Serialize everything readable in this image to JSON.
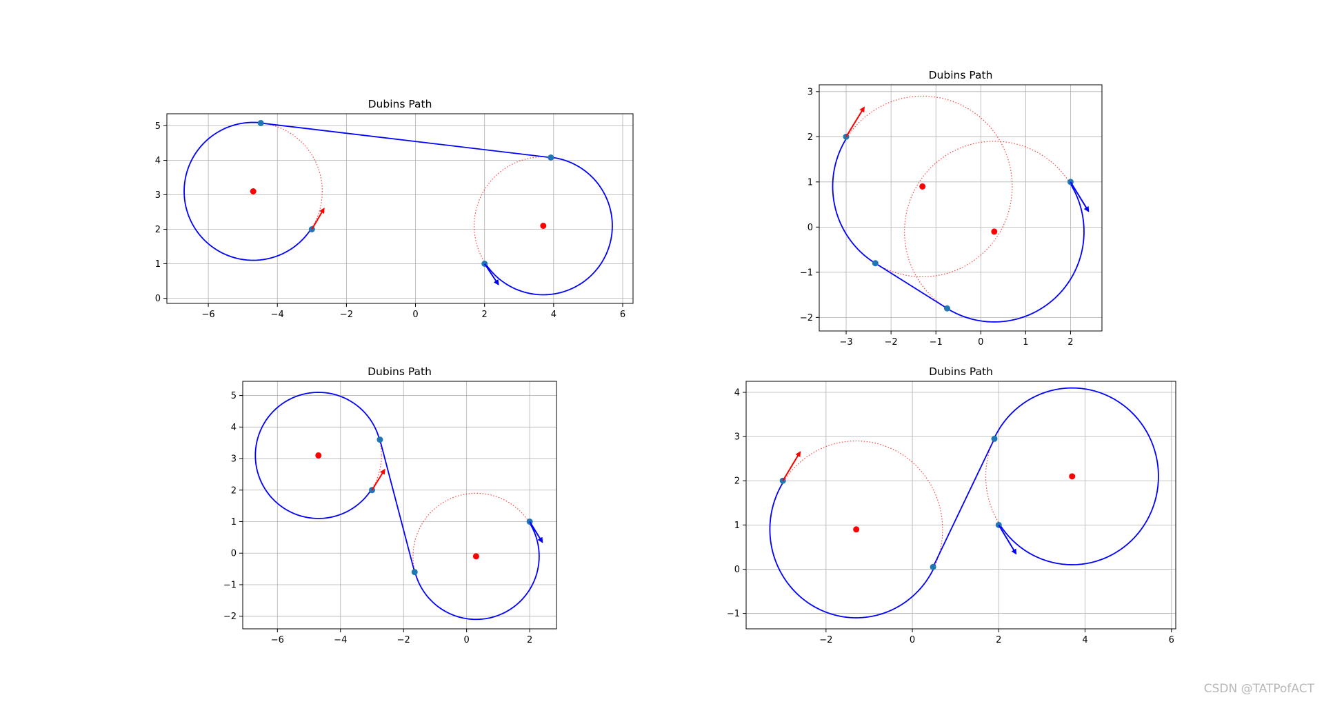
{
  "watermark": "CSDN @TATPofACT",
  "colors": {
    "path": "#0000ff",
    "circle": "#ff0000",
    "arrow": "#ff0000",
    "grid": "#b0b0b0",
    "point": "#1f77b4"
  },
  "chart_data": [
    {
      "type": "line",
      "title": "Dubins Path",
      "xlim": [
        -7.2,
        6.3
      ],
      "ylim": [
        -0.15,
        5.35
      ],
      "xticks": [
        -6,
        -4,
        -2,
        0,
        2,
        4,
        6
      ],
      "yticks": [
        0,
        1,
        2,
        3,
        4,
        5
      ],
      "grid": true,
      "centers": [
        [
          -4.7,
          3.1
        ],
        [
          3.7,
          2.1
        ]
      ],
      "radius": 2.0,
      "path_points": [
        [
          -3.0,
          2.0
        ],
        [
          -4.48,
          5.08
        ],
        [
          3.92,
          4.08
        ],
        [
          2.0,
          1.0
        ]
      ],
      "path_segments": [
        {
          "kind": "arc",
          "center": [
            -4.7,
            3.1
          ],
          "from": [
            -3.0,
            2.0
          ],
          "to": [
            -4.48,
            5.08
          ],
          "dir": "cw"
        },
        {
          "kind": "line",
          "from": [
            -4.48,
            5.08
          ],
          "to": [
            3.92,
            4.08
          ]
        },
        {
          "kind": "arc",
          "center": [
            3.7,
            2.1
          ],
          "from": [
            3.92,
            4.08
          ],
          "to": [
            2.0,
            1.0
          ],
          "dir": "cw"
        }
      ],
      "start": {
        "point": [
          -3.0,
          2.0
        ],
        "heading": [
          0.35,
          0.6
        ]
      },
      "goal": {
        "point": [
          2.0,
          1.0
        ],
        "heading": [
          0.4,
          -0.6
        ]
      }
    },
    {
      "type": "line",
      "title": "Dubins Path",
      "xlim": [
        -3.6,
        2.7
      ],
      "ylim": [
        -2.3,
        3.15
      ],
      "xticks": [
        -3,
        -2,
        -1,
        0,
        1,
        2
      ],
      "yticks": [
        -2,
        -1,
        0,
        1,
        2,
        3
      ],
      "grid": true,
      "centers": [
        [
          -1.3,
          0.9
        ],
        [
          0.3,
          -0.1
        ]
      ],
      "radius": 2.0,
      "path_points": [
        [
          -3.0,
          2.0
        ],
        [
          -2.35,
          -0.8
        ],
        [
          -0.75,
          -1.8
        ],
        [
          2.0,
          1.0
        ]
      ],
      "path_segments": [
        {
          "kind": "arc",
          "center": [
            -1.3,
            0.9
          ],
          "from": [
            -3.0,
            2.0
          ],
          "to": [
            -2.35,
            -0.8
          ],
          "dir": "ccw"
        },
        {
          "kind": "line",
          "from": [
            -2.35,
            -0.8
          ],
          "to": [
            -0.75,
            -1.8
          ]
        },
        {
          "kind": "arc",
          "center": [
            0.3,
            -0.1
          ],
          "from": [
            -0.75,
            -1.8
          ],
          "to": [
            2.0,
            1.0
          ],
          "dir": "ccw"
        }
      ],
      "start": {
        "point": [
          -3.0,
          2.0
        ],
        "heading": [
          0.4,
          0.65
        ]
      },
      "goal": {
        "point": [
          2.0,
          1.0
        ],
        "heading": [
          0.4,
          -0.65
        ]
      }
    },
    {
      "type": "line",
      "title": "Dubins Path",
      "xlim": [
        -7.1,
        2.85
      ],
      "ylim": [
        -2.4,
        5.45
      ],
      "xticks": [
        -6,
        -4,
        -2,
        0,
        2
      ],
      "yticks": [
        -2,
        -1,
        0,
        1,
        2,
        3,
        4,
        5
      ],
      "grid": true,
      "centers": [
        [
          -4.7,
          3.1
        ],
        [
          0.3,
          -0.1
        ]
      ],
      "radius": 2.0,
      "path_points": [
        [
          -3.0,
          2.0
        ],
        [
          -2.75,
          3.6
        ],
        [
          -1.65,
          -0.6
        ],
        [
          2.0,
          1.0
        ]
      ],
      "path_segments": [
        {
          "kind": "arc",
          "center": [
            -4.7,
            3.1
          ],
          "from": [
            -3.0,
            2.0
          ],
          "to": [
            -2.75,
            3.6
          ],
          "dir": "cw"
        },
        {
          "kind": "line",
          "from": [
            -2.75,
            3.6
          ],
          "to": [
            -1.65,
            -0.6
          ]
        },
        {
          "kind": "arc",
          "center": [
            0.3,
            -0.1
          ],
          "from": [
            -1.65,
            -0.6
          ],
          "to": [
            2.0,
            1.0
          ],
          "dir": "ccw"
        }
      ],
      "start": {
        "point": [
          -3.0,
          2.0
        ],
        "heading": [
          0.4,
          0.65
        ]
      },
      "goal": {
        "point": [
          2.0,
          1.0
        ],
        "heading": [
          0.4,
          -0.65
        ]
      }
    },
    {
      "type": "line",
      "title": "Dubins Path",
      "xlim": [
        -3.85,
        6.1
      ],
      "ylim": [
        -1.35,
        4.25
      ],
      "xticks": [
        -2,
        0,
        2,
        4,
        6
      ],
      "yticks": [
        -1,
        0,
        1,
        2,
        3,
        4
      ],
      "grid": true,
      "centers": [
        [
          -1.3,
          0.9
        ],
        [
          3.7,
          2.1
        ]
      ],
      "radius": 2.0,
      "path_points": [
        [
          -3.0,
          2.0
        ],
        [
          0.48,
          0.05
        ],
        [
          1.9,
          2.95
        ],
        [
          2.0,
          1.0
        ]
      ],
      "path_segments": [
        {
          "kind": "arc",
          "center": [
            -1.3,
            0.9
          ],
          "from": [
            -3.0,
            2.0
          ],
          "to": [
            0.48,
            0.05
          ],
          "dir": "ccw"
        },
        {
          "kind": "line",
          "from": [
            0.48,
            0.05
          ],
          "to": [
            1.9,
            2.95
          ]
        },
        {
          "kind": "arc",
          "center": [
            3.7,
            2.1
          ],
          "from": [
            1.9,
            2.95
          ],
          "to": [
            2.0,
            1.0
          ],
          "dir": "cw"
        }
      ],
      "start": {
        "point": [
          -3.0,
          2.0
        ],
        "heading": [
          0.4,
          0.65
        ]
      },
      "goal": {
        "point": [
          2.0,
          1.0
        ],
        "heading": [
          0.4,
          -0.65
        ]
      }
    }
  ]
}
